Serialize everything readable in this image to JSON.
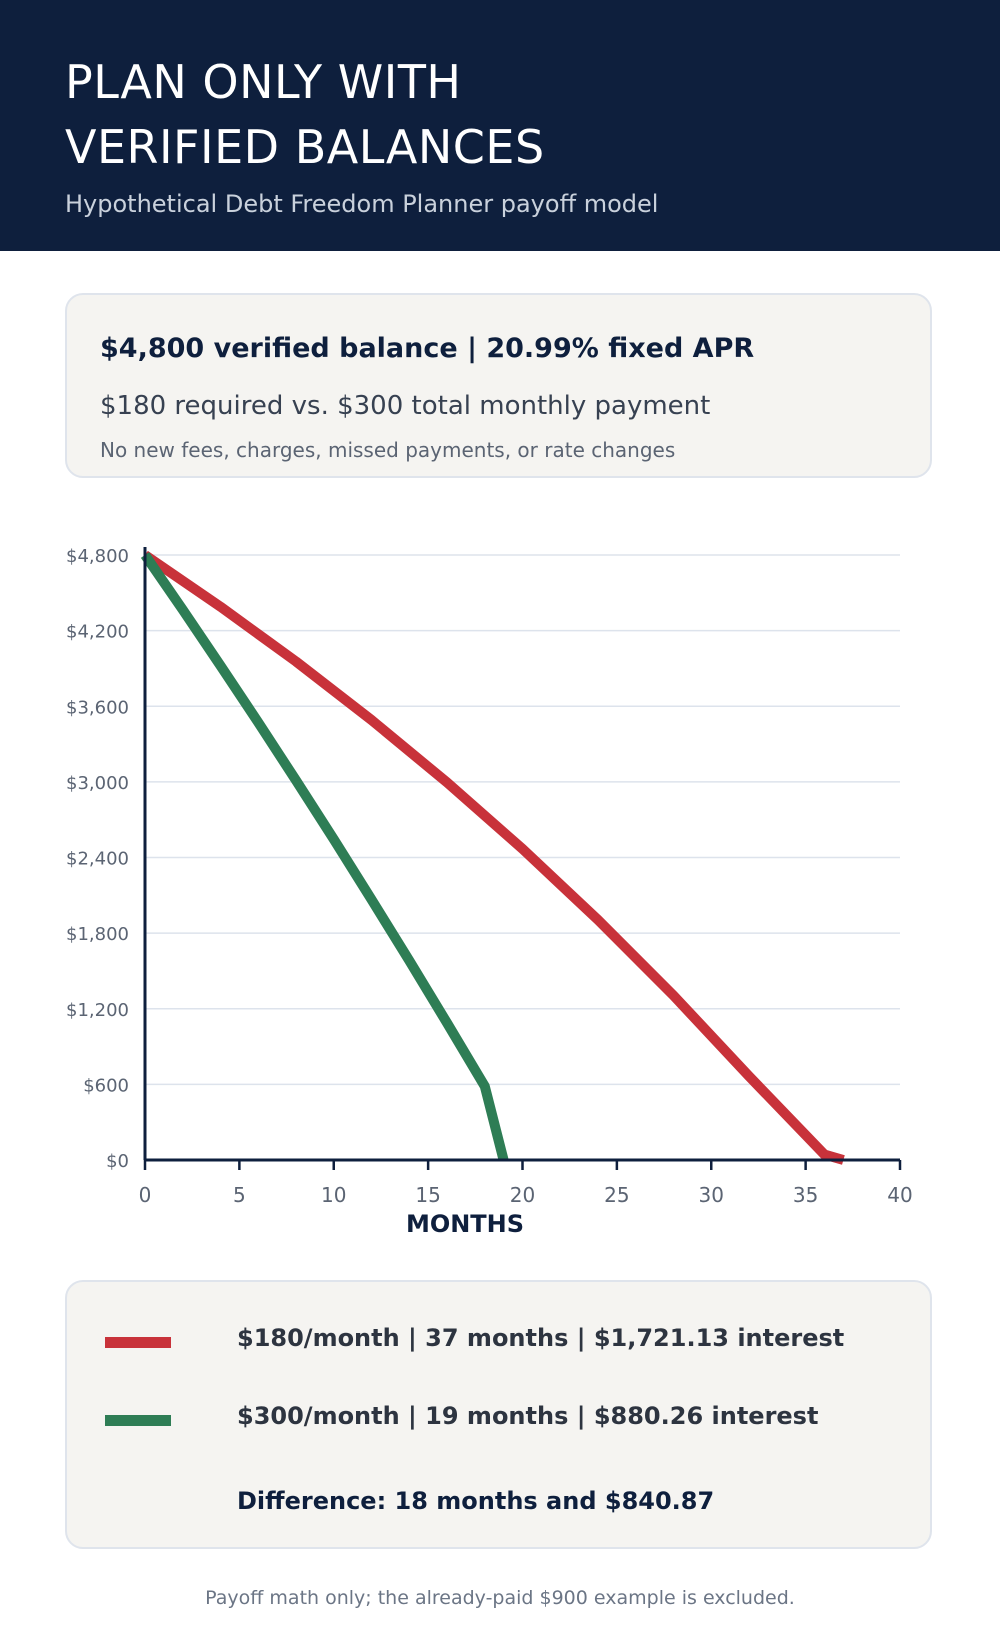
{
  "header": {
    "title_line1": "PLAN ONLY WITH",
    "title_line2": "VERIFIED BALANCES",
    "subtitle": "Hypothetical Debt Freedom Planner payoff model",
    "background": "#0e1f3d"
  },
  "summary": {
    "line1": "$4,800 verified balance  |  20.99% fixed APR",
    "line2": "$180 required vs. $300 total monthly payment",
    "line3": "No new fees, charges, missed payments, or rate changes"
  },
  "chart_data": {
    "type": "line",
    "title": "",
    "xlabel": "MONTHS",
    "ylabel": "",
    "xlim": [
      0,
      40
    ],
    "ylim": [
      0,
      4800
    ],
    "x_ticks": [
      0,
      5,
      10,
      15,
      20,
      25,
      30,
      35,
      40
    ],
    "y_ticks": [
      0,
      600,
      1200,
      1800,
      2400,
      3000,
      3600,
      4200,
      4800
    ],
    "y_tick_labels": [
      "$0",
      "$600",
      "$1,200",
      "$1,800",
      "$2,400",
      "$3,000",
      "$3,600",
      "$4,200",
      "$4,800"
    ],
    "grid": "horizontal",
    "series": [
      {
        "name": "$180/month",
        "color": "#c8323a",
        "x": [
          0,
          4,
          8,
          12,
          16,
          20,
          24,
          28,
          32,
          36,
          37
        ],
        "y": [
          4800,
          4390,
          3955,
          3491,
          2996,
          2468,
          1905,
          1305,
          665,
          43,
          0
        ]
      },
      {
        "name": "$300/month",
        "color": "#2e7d55",
        "x": [
          0,
          2,
          4,
          6,
          8,
          10,
          12,
          14,
          16,
          18,
          19
        ],
        "y": [
          4800,
          4365,
          3922,
          3471,
          3012,
          2544,
          2067,
          1582,
          1088,
          585,
          0
        ]
      }
    ]
  },
  "legend": {
    "items": [
      {
        "swatch_color": "#c8323a",
        "text": "$180/month  |  37 months  |  $1,721.13 interest"
      },
      {
        "swatch_color": "#2e7d55",
        "text": "$300/month  |  19 months  |  $880.26 interest"
      }
    ],
    "difference": "Difference: 18 months and $840.87"
  },
  "footnote": "Payoff math only; the already-paid $900 example is excluded."
}
